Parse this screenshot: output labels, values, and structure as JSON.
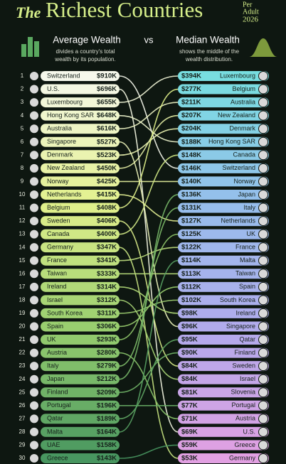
{
  "title_prefix": "The",
  "title": "Richest Countries",
  "note_lines": [
    "Per",
    "Adult",
    "2026"
  ],
  "vs": "vs",
  "left": {
    "heading": "Average Wealth",
    "description_lines": [
      "divides a country's total",
      "wealth by its population."
    ],
    "rows": [
      {
        "rank": 1,
        "country": "Switzerland",
        "value": "$910K"
      },
      {
        "rank": 2,
        "country": "U.S.",
        "value": "$696K"
      },
      {
        "rank": 3,
        "country": "Luxembourg",
        "value": "$655K"
      },
      {
        "rank": 4,
        "country": "Hong Kong SAR",
        "value": "$648K"
      },
      {
        "rank": 5,
        "country": "Australia",
        "value": "$616K"
      },
      {
        "rank": 6,
        "country": "Singapore",
        "value": "$527K"
      },
      {
        "rank": 7,
        "country": "Denmark",
        "value": "$523K"
      },
      {
        "rank": 8,
        "country": "New Zealand",
        "value": "$450K"
      },
      {
        "rank": 9,
        "country": "Norway",
        "value": "$425K"
      },
      {
        "rank": 10,
        "country": "Netherlands",
        "value": "$415K"
      },
      {
        "rank": 11,
        "country": "Belgium",
        "value": "$408K"
      },
      {
        "rank": 12,
        "country": "Sweden",
        "value": "$406K"
      },
      {
        "rank": 13,
        "country": "Canada",
        "value": "$400K"
      },
      {
        "rank": 14,
        "country": "Germany",
        "value": "$347K"
      },
      {
        "rank": 15,
        "country": "France",
        "value": "$341K"
      },
      {
        "rank": 16,
        "country": "Taiwan",
        "value": "$333K"
      },
      {
        "rank": 17,
        "country": "Ireland",
        "value": "$314K"
      },
      {
        "rank": 18,
        "country": "Israel",
        "value": "$312K"
      },
      {
        "rank": 19,
        "country": "South Korea",
        "value": "$311K"
      },
      {
        "rank": 20,
        "country": "Spain",
        "value": "$306K"
      },
      {
        "rank": 21,
        "country": "UK",
        "value": "$293K"
      },
      {
        "rank": 22,
        "country": "Austria",
        "value": "$280K"
      },
      {
        "rank": 23,
        "country": "Italy",
        "value": "$279K"
      },
      {
        "rank": 24,
        "country": "Japan",
        "value": "$212K"
      },
      {
        "rank": 25,
        "country": "Finland",
        "value": "$209K"
      },
      {
        "rank": 26,
        "country": "Portugal",
        "value": "$196K"
      },
      {
        "rank": 27,
        "country": "Qatar",
        "value": "$189K"
      },
      {
        "rank": 28,
        "country": "Malta",
        "value": "$164K"
      },
      {
        "rank": 29,
        "country": "UAE",
        "value": "$158K"
      },
      {
        "rank": 30,
        "country": "Greece",
        "value": "$143K"
      }
    ]
  },
  "right": {
    "heading": "Median Wealth",
    "description_lines": [
      "shows the middle of the",
      "wealth distribution."
    ],
    "rows": [
      {
        "country": "Luxembourg",
        "value": "$394K"
      },
      {
        "country": "Belgium",
        "value": "$277K"
      },
      {
        "country": "Australia",
        "value": "$211K"
      },
      {
        "country": "New Zealand",
        "value": "$207K"
      },
      {
        "country": "Denmark",
        "value": "$204K"
      },
      {
        "country": "Hong Kong SAR",
        "value": "$188K"
      },
      {
        "country": "Canada",
        "value": "$148K"
      },
      {
        "country": "Switzerland",
        "value": "$146K"
      },
      {
        "country": "Norway",
        "value": "$140K"
      },
      {
        "country": "Japan",
        "value": "$136K"
      },
      {
        "country": "Italy",
        "value": "$131K"
      },
      {
        "country": "Netherlands",
        "value": "$127K"
      },
      {
        "country": "UK",
        "value": "$125K"
      },
      {
        "country": "France",
        "value": "$122K"
      },
      {
        "country": "Malta",
        "value": "$114K"
      },
      {
        "country": "Taiwan",
        "value": "$113K"
      },
      {
        "country": "Spain",
        "value": "$112K"
      },
      {
        "country": "South Korea",
        "value": "$102K"
      },
      {
        "country": "Ireland",
        "value": "$98K"
      },
      {
        "country": "Singapore",
        "value": "$96K"
      },
      {
        "country": "Qatar",
        "value": "$95K"
      },
      {
        "country": "Finland",
        "value": "$90K"
      },
      {
        "country": "Sweden",
        "value": "$84K"
      },
      {
        "country": "Israel",
        "value": "$84K"
      },
      {
        "country": "Slovenia",
        "value": "$81K"
      },
      {
        "country": "Portugal",
        "value": "$77K"
      },
      {
        "country": "Austria",
        "value": "$71K"
      },
      {
        "country": "U.S.",
        "value": "$69K"
      },
      {
        "country": "Greece",
        "value": "$59K"
      },
      {
        "country": "Germany",
        "value": "$53K"
      }
    ]
  }
}
